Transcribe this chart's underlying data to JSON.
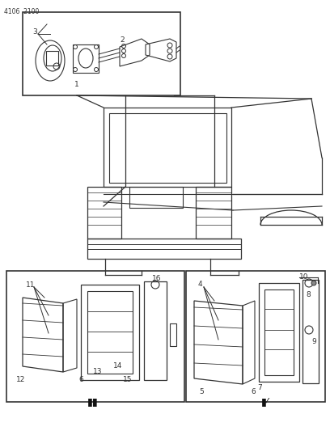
{
  "title_text": "4106  2100",
  "bg_color": "#ffffff",
  "line_color": "#333333",
  "figsize": [
    4.08,
    5.33
  ],
  "dpi": 100
}
